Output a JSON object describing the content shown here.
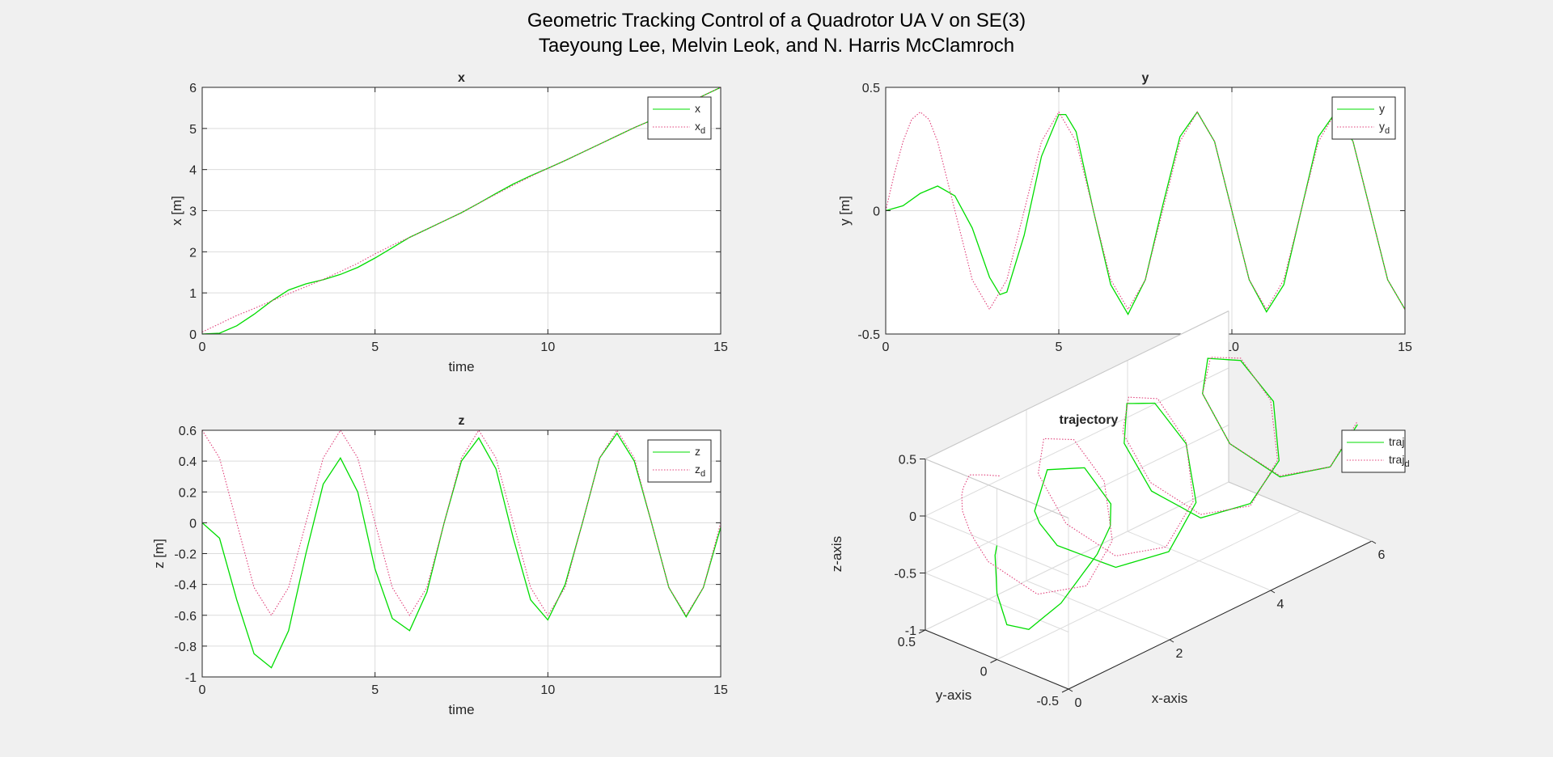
{
  "figure": {
    "title_line1": "Geometric Tracking Control of a Quadrotor UA V on SE(3)",
    "title_line2": "Taeyoung Lee, Melvin Leok, and N. Harris McClamroch"
  },
  "colors": {
    "actual": "#00dd00",
    "desired": "#e0407a",
    "grid": "#dcdcdc",
    "axes": "#262626",
    "figure_bg": "#f0f0f0",
    "axes_bg": "#ffffff"
  },
  "chart_data": [
    {
      "id": "x",
      "type": "line",
      "title": "x",
      "xlabel": "time",
      "ylabel": "x [m]",
      "xlim": [
        0,
        15
      ],
      "ylim": [
        0,
        6
      ],
      "xticks": [
        0,
        5,
        10,
        15
      ],
      "xtick_labels": [
        "0",
        "5",
        "10",
        "15"
      ],
      "yticks": [
        0,
        1,
        2,
        3,
        4,
        5,
        6
      ],
      "ytick_labels": [
        "0",
        "1",
        "2",
        "3",
        "4",
        "5",
        "6"
      ],
      "grid": true,
      "legend_position": "top-right",
      "series": [
        {
          "name": "x",
          "style": "solid",
          "x": [
            0,
            0.5,
            1,
            1.5,
            2,
            2.5,
            3,
            3.5,
            4,
            4.5,
            5,
            5.5,
            6,
            6.5,
            7,
            7.5,
            8,
            8.5,
            9,
            9.5,
            10,
            10.5,
            11,
            11.5,
            12,
            12.5,
            13,
            13.5,
            14,
            14.5,
            15
          ],
          "y": [
            0,
            0.02,
            0.2,
            0.48,
            0.8,
            1.07,
            1.22,
            1.32,
            1.45,
            1.62,
            1.85,
            2.1,
            2.35,
            2.55,
            2.75,
            2.95,
            3.18,
            3.42,
            3.65,
            3.85,
            4.03,
            4.22,
            4.42,
            4.62,
            4.82,
            5.02,
            5.2,
            5.4,
            5.6,
            5.8,
            6.0
          ]
        },
        {
          "name": "x_d",
          "label_base": "x",
          "label_sub": "d",
          "style": "dotted",
          "x": [
            0,
            0.5,
            1,
            1.5,
            2,
            2.5,
            3,
            3.5,
            4,
            4.5,
            5,
            5.5,
            6,
            6.5,
            7,
            7.5,
            8,
            8.5,
            9,
            9.5,
            10,
            10.5,
            11,
            11.5,
            12,
            12.5,
            13,
            13.5,
            14,
            14.5,
            15
          ],
          "y": [
            0.05,
            0.25,
            0.45,
            0.62,
            0.8,
            0.98,
            1.15,
            1.33,
            1.52,
            1.72,
            1.95,
            2.16,
            2.35,
            2.55,
            2.75,
            2.95,
            3.18,
            3.4,
            3.62,
            3.83,
            4.03,
            4.22,
            4.42,
            4.62,
            4.82,
            5.02,
            5.2,
            5.4,
            5.6,
            5.8,
            6.0
          ]
        }
      ]
    },
    {
      "id": "y",
      "type": "line",
      "title": "y",
      "xlabel": "time",
      "ylabel": "y [m]",
      "xlim": [
        0,
        15
      ],
      "ylim": [
        -0.5,
        0.5
      ],
      "xticks": [
        0,
        5,
        10,
        15
      ],
      "xtick_labels": [
        "0",
        "5",
        "10",
        "15"
      ],
      "yticks": [
        -0.5,
        0,
        0.5
      ],
      "ytick_labels": [
        "-0.5",
        "0",
        "0.5"
      ],
      "grid": true,
      "legend_position": "top-right",
      "series": [
        {
          "name": "y",
          "style": "solid",
          "x": [
            0,
            0.5,
            1,
            1.5,
            2,
            2.5,
            3,
            3.3,
            3.5,
            4,
            4.5,
            5,
            5.2,
            5.5,
            6,
            6.5,
            7,
            7.5,
            8,
            8.5,
            9,
            9.5,
            10,
            10.5,
            11,
            11.5,
            12,
            12.5,
            13,
            13.5,
            14,
            14.5,
            15
          ],
          "y": [
            0,
            0.02,
            0.07,
            0.1,
            0.06,
            -0.07,
            -0.27,
            -0.34,
            -0.33,
            -0.1,
            0.22,
            0.39,
            0.39,
            0.32,
            0,
            -0.3,
            -0.42,
            -0.28,
            0.02,
            0.3,
            0.4,
            0.28,
            0,
            -0.28,
            -0.41,
            -0.3,
            0,
            0.3,
            0.4,
            0.28,
            0,
            -0.28,
            -0.4
          ]
        },
        {
          "name": "y_d",
          "label_base": "y",
          "label_sub": "d",
          "style": "dotted",
          "x": [
            0,
            0.25,
            0.5,
            0.75,
            1,
            1.25,
            1.5,
            2,
            2.5,
            3,
            3.5,
            4,
            4.5,
            5,
            5.5,
            6,
            6.5,
            7,
            7.5,
            8,
            8.5,
            9,
            9.5,
            10,
            10.5,
            11,
            11.5,
            12,
            12.5,
            13,
            13.5,
            14,
            14.5,
            15
          ],
          "y": [
            0,
            0.15,
            0.28,
            0.37,
            0.4,
            0.37,
            0.28,
            0,
            -0.28,
            -0.4,
            -0.28,
            0,
            0.28,
            0.4,
            0.28,
            0,
            -0.28,
            -0.4,
            -0.28,
            0,
            0.28,
            0.4,
            0.28,
            0,
            -0.28,
            -0.4,
            -0.28,
            0,
            0.28,
            0.4,
            0.28,
            0,
            -0.28,
            -0.4
          ]
        }
      ]
    },
    {
      "id": "z",
      "type": "line",
      "title": "z",
      "xlabel": "time",
      "ylabel": "z [m]",
      "xlim": [
        0,
        15
      ],
      "ylim": [
        -1,
        0.6
      ],
      "xticks": [
        0,
        5,
        10,
        15
      ],
      "xtick_labels": [
        "0",
        "5",
        "10",
        "15"
      ],
      "yticks": [
        -1,
        -0.8,
        -0.6,
        -0.4,
        -0.2,
        0,
        0.2,
        0.4,
        0.6
      ],
      "ytick_labels": [
        "-1",
        "-0.8",
        "-0.6",
        "-0.4",
        "-0.2",
        "0",
        "0.2",
        "0.4",
        "0.6"
      ],
      "grid": true,
      "legend_position": "top-right",
      "series": [
        {
          "name": "z",
          "style": "solid",
          "x": [
            0,
            0.5,
            1,
            1.5,
            2,
            2.5,
            3,
            3.5,
            4,
            4.5,
            5,
            5.5,
            6,
            6.5,
            7,
            7.5,
            8,
            8.5,
            9,
            9.5,
            10,
            10.5,
            11,
            11.5,
            12,
            12.5,
            13,
            13.5,
            14,
            14.5,
            15
          ],
          "y": [
            0,
            -0.1,
            -0.5,
            -0.85,
            -0.94,
            -0.7,
            -0.2,
            0.25,
            0.42,
            0.2,
            -0.3,
            -0.62,
            -0.7,
            -0.45,
            0,
            0.4,
            0.55,
            0.35,
            -0.1,
            -0.5,
            -0.63,
            -0.4,
            0,
            0.42,
            0.58,
            0.4,
            0,
            -0.42,
            -0.61,
            -0.42,
            -0.03
          ]
        },
        {
          "name": "z_d",
          "label_base": "z",
          "label_sub": "d",
          "style": "dotted",
          "x": [
            0,
            0.5,
            1,
            1.5,
            2,
            2.5,
            3,
            3.5,
            4,
            4.5,
            5,
            5.5,
            6,
            6.5,
            7,
            7.5,
            8,
            8.5,
            9,
            9.5,
            10,
            10.5,
            11,
            11.5,
            12,
            12.5,
            13,
            13.5,
            14,
            14.5,
            15
          ],
          "y": [
            0.6,
            0.42,
            0,
            -0.42,
            -0.6,
            -0.42,
            0,
            0.42,
            0.6,
            0.42,
            0,
            -0.42,
            -0.6,
            -0.42,
            0,
            0.42,
            0.6,
            0.42,
            0,
            -0.42,
            -0.6,
            -0.42,
            0,
            0.42,
            0.6,
            0.42,
            0,
            -0.42,
            -0.6,
            -0.42,
            0
          ]
        }
      ]
    },
    {
      "id": "trajectory",
      "type": "line",
      "title": "trajectory",
      "xlabel": "x-axis",
      "ylabel": "y-axis",
      "zlabel": "z-axis",
      "xlim": [
        0,
        6
      ],
      "ylim": [
        -0.5,
        0.5
      ],
      "zlim": [
        -1,
        0.5
      ],
      "xticks": [
        0,
        2,
        4,
        6
      ],
      "xtick_labels": [
        "0",
        "2",
        "4",
        "6"
      ],
      "yticks": [
        -0.5,
        0,
        0.5
      ],
      "ytick_labels": [
        "-0.5",
        "0",
        "0.5"
      ],
      "zticks": [
        -1,
        -0.5,
        0,
        0.5
      ],
      "ztick_labels": [
        "-1",
        "-0.5",
        "0",
        "0.5"
      ],
      "grid": true,
      "legend_position": "top-right",
      "series": [
        {
          "name": "traj",
          "style": "solid",
          "x_from": "x",
          "y_from": "y",
          "z_from": "z"
        },
        {
          "name": "traj_d",
          "label_base": "traj",
          "label_sub": "d",
          "style": "dotted",
          "x_from": "x_d",
          "y_from": "y_d",
          "z_from": "z_d"
        }
      ]
    }
  ]
}
